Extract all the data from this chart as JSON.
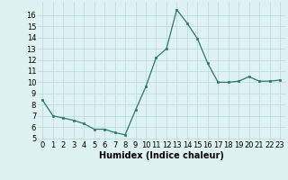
{
  "x": [
    0,
    1,
    2,
    3,
    4,
    5,
    6,
    7,
    8,
    9,
    10,
    11,
    12,
    13,
    14,
    15,
    16,
    17,
    18,
    19,
    20,
    21,
    22,
    23
  ],
  "y": [
    8.4,
    7.0,
    6.8,
    6.6,
    6.3,
    5.8,
    5.8,
    5.5,
    5.3,
    7.5,
    9.6,
    12.2,
    13.0,
    16.5,
    15.3,
    13.9,
    11.7,
    10.0,
    10.0,
    10.1,
    10.5,
    10.1,
    10.1,
    10.2
  ],
  "xlabel": "Humidex (Indice chaleur)",
  "ylim": [
    4.8,
    17.2
  ],
  "xlim": [
    -0.5,
    23.5
  ],
  "yticks": [
    5,
    6,
    7,
    8,
    9,
    10,
    11,
    12,
    13,
    14,
    15,
    16
  ],
  "xticks": [
    0,
    1,
    2,
    3,
    4,
    5,
    6,
    7,
    8,
    9,
    10,
    11,
    12,
    13,
    14,
    15,
    16,
    17,
    18,
    19,
    20,
    21,
    22,
    23
  ],
  "line_color": "#2a7a6a",
  "marker_color": "#2a7a6a",
  "bg_color": "#dff2f2",
  "grid_color": "#b8d8d8",
  "xlabel_fontsize": 7,
  "tick_fontsize": 6,
  "fig_width": 3.2,
  "fig_height": 2.0,
  "dpi": 100
}
